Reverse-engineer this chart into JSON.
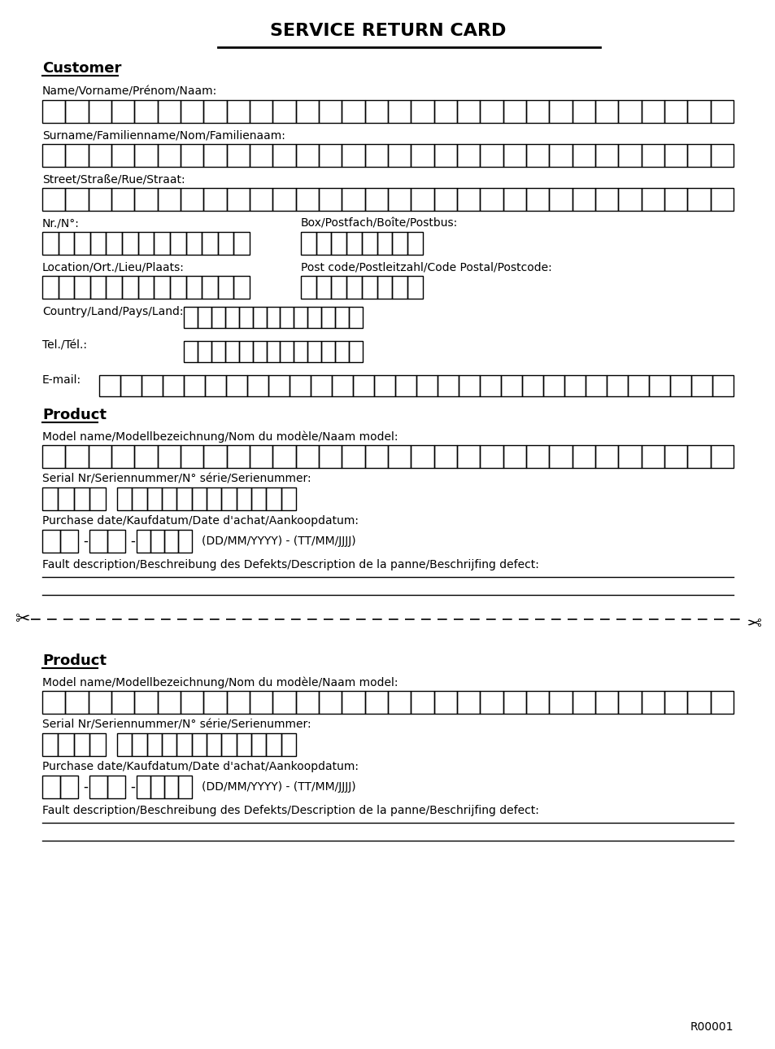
{
  "title": "SERVICE RETURN CARD",
  "bg_color": "#ffffff",
  "text_color": "#000000",
  "figsize": [
    9.54,
    12.89
  ],
  "dpi": 100,
  "section1_heading": "Customer",
  "section2_heading": "Product",
  "labels": {
    "name": "Name/Vorname/Prénom/Naam:",
    "surname": "Surname/Familienname/Nom/Familienaam:",
    "street": "Street/Straße/Rue/Straat:",
    "nr": "Nr./N°:",
    "box": "Box/Postfach/Boîte/Postbus:",
    "location": "Location/Ort./Lieu/Plaats:",
    "postcode": "Post code/Postleitzahl/Code Postal/Postcode:",
    "country": "Country/Land/Pays/Land:",
    "tel": "Tel./Tél.:",
    "email": "E-mail:",
    "model": "Model name/Modellbezeichnung/Nom du modèle/Naam model:",
    "serial": "Serial Nr/Seriennummer/N° série/Serienummer:",
    "purchase": "Purchase date/Kaufdatum/Date d'achat/Aankoopdatum:",
    "date_hint": "(DD/MM/YYYY) - (TT/MM/JJJJ)",
    "fault": "Fault description/Beschreibung des Defekts/Description de la panne/Beschrijfing defect:"
  },
  "footer_code": "R00001"
}
